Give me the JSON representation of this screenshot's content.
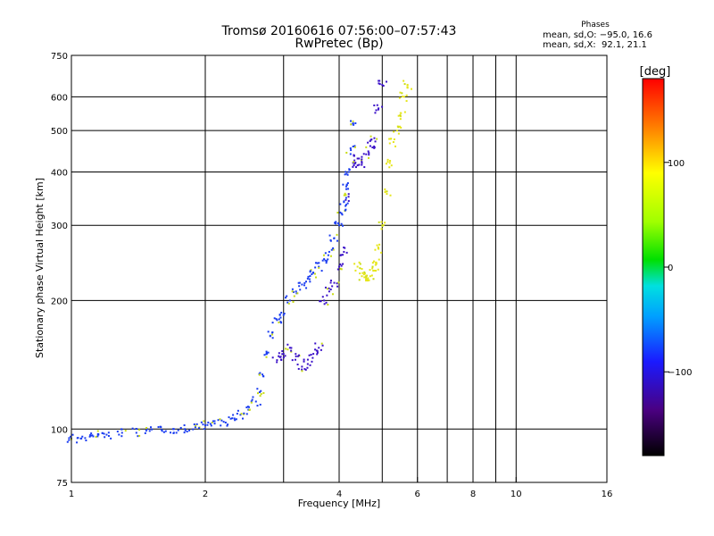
{
  "header": {
    "title": "Tromsø 20160616 07:56:00–07:57:43",
    "subtitle": "RwPretec (Bp)",
    "phase_title": "Phases",
    "phase_o": "mean, sd,O: −95.0, 16.6",
    "phase_x": "mean, sd,X:  92.1, 21.1"
  },
  "chart_data": {
    "type": "scatter",
    "xlabel": "Frequency [MHz]",
    "ylabel": "Stationary phase Virtual Height [km]",
    "x_scale": "log",
    "y_scale": "log",
    "xlim": [
      1,
      16
    ],
    "ylim": [
      75,
      750
    ],
    "x_ticks": [
      1,
      2,
      4,
      6,
      8,
      10,
      16
    ],
    "x_tick_labels": [
      "1",
      "2",
      "4",
      "6",
      "8",
      "10",
      "16"
    ],
    "x_minor": [
      3,
      5,
      7,
      9
    ],
    "y_ticks": [
      75,
      100,
      200,
      300,
      400,
      500,
      600,
      750
    ],
    "y_tick_labels": [
      "75",
      "100",
      "200",
      "300",
      "400",
      "500",
      "600",
      "750"
    ],
    "grid": true,
    "colorbar": {
      "label": "[deg]",
      "range": [
        -180,
        180
      ],
      "ticks": [
        100,
        0,
        -100
      ],
      "tick_labels": [
        "100",
        "0",
        "−100"
      ]
    },
    "colors": {
      "o_mode": "#1a3cf0",
      "o_mode_dark": "#3a10c8",
      "x_mode": "#e6e61a",
      "x_mode_alt": "#c8dc14"
    },
    "series": [
      {
        "phase": -100,
        "x": [
          1.0,
          1.05,
          1.1,
          1.15,
          1.2,
          1.3,
          1.4,
          1.5,
          1.6,
          1.7,
          1.8,
          1.9,
          2.0,
          2.1,
          2.2,
          2.3,
          2.4,
          2.5,
          2.6,
          2.65,
          2.7,
          2.75,
          2.8,
          2.9,
          3.0,
          3.1,
          3.2,
          3.3,
          3.4,
          3.5,
          3.6,
          3.7,
          3.8,
          3.9,
          4.0,
          4.05,
          4.1,
          4.15,
          4.2,
          4.25,
          4.3
        ],
        "y": [
          95,
          95,
          96,
          97,
          97,
          98,
          98,
          99,
          99,
          100,
          100,
          101,
          102,
          103,
          104,
          106,
          108,
          111,
          116,
          122,
          133,
          150,
          165,
          180,
          185,
          200,
          210,
          218,
          225,
          232,
          240,
          250,
          260,
          280,
          300,
          320,
          340,
          370,
          400,
          450,
          520
        ]
      },
      {
        "phase": -110,
        "x": [
          2.9,
          3.0,
          3.1,
          3.2,
          3.3,
          3.4,
          3.5,
          3.6,
          3.7,
          3.8,
          3.9,
          4.0,
          4.1,
          4.2,
          4.3,
          4.4,
          4.5,
          4.6,
          4.7,
          4.8,
          4.9,
          5.0
        ],
        "y": [
          145,
          150,
          155,
          148,
          140,
          142,
          150,
          155,
          200,
          210,
          220,
          240,
          260,
          350,
          420,
          430,
          420,
          440,
          460,
          480,
          560,
          640
        ]
      },
      {
        "phase": 95,
        "x": [
          4.4,
          4.5,
          4.6,
          4.7,
          4.8,
          4.85,
          4.9,
          5.0,
          5.1,
          5.2,
          5.3,
          5.4,
          5.5,
          5.6,
          5.7
        ],
        "y": [
          240,
          228,
          225,
          228,
          235,
          245,
          265,
          300,
          360,
          420,
          470,
          500,
          540,
          600,
          640
        ]
      }
    ]
  }
}
